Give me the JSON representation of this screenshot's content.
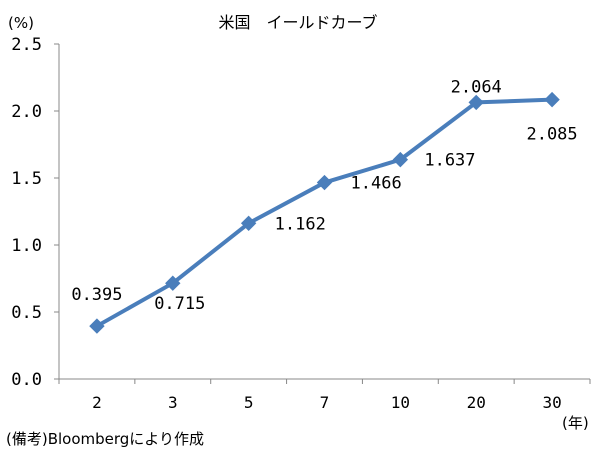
{
  "chart_data": {
    "type": "line",
    "title": "米国　イールドカーブ",
    "ylabel": "(%)",
    "xlabel": "(年)",
    "categories": [
      "2",
      "3",
      "5",
      "7",
      "10",
      "20",
      "30"
    ],
    "series": [
      {
        "values": [
          0.395,
          0.715,
          1.162,
          1.466,
          1.637,
          2.064,
          2.085
        ]
      }
    ],
    "data_labels": [
      "0.395",
      "0.715",
      "1.162",
      "1.466",
      "1.637",
      "2.064",
      "2.085"
    ],
    "ylim": [
      0,
      2.5
    ],
    "yticks": [
      "0.0",
      "0.5",
      "1.0",
      "1.5",
      "2.0",
      "2.5"
    ],
    "grid": false,
    "line_color": "#4a7ebb",
    "marker": "diamond"
  },
  "footnote": "(備考)Bloombergにより作成"
}
